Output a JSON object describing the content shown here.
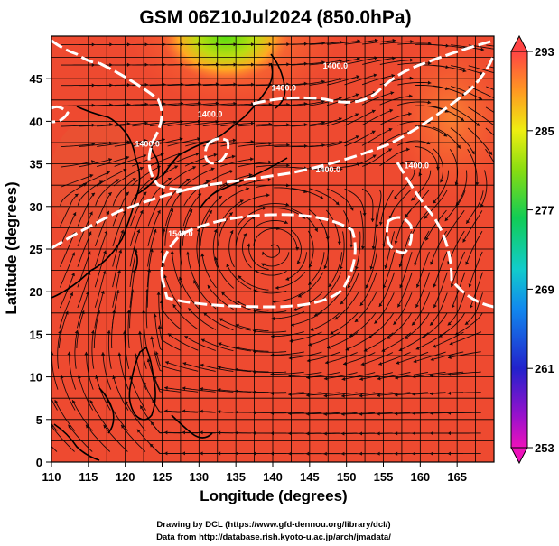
{
  "title": "GSM 06Z10Jul2024 (850.0hPa)",
  "x_axis": {
    "label": "Longitude (degrees)",
    "range": [
      110,
      170
    ],
    "ticks": [
      "110",
      "115",
      "120",
      "125",
      "130",
      "135",
      "140",
      "145",
      "150",
      "155",
      "160",
      "165"
    ]
  },
  "y_axis": {
    "label": "Latitude (degrees)",
    "range": [
      0,
      50
    ],
    "ticks": [
      "0",
      "5",
      "10",
      "15",
      "20",
      "25",
      "30",
      "35",
      "40",
      "45"
    ]
  },
  "colorbar": {
    "range": [
      253,
      293
    ],
    "ticks": [
      "253",
      "261",
      "269",
      "277",
      "285",
      "293"
    ]
  },
  "contour_labels": [
    {
      "text": "1400.0",
      "lon": 131.5,
      "lat": 40.5
    },
    {
      "text": "1400.0",
      "lon": 141.5,
      "lat": 43.6
    },
    {
      "text": "1400.0",
      "lon": 148.5,
      "lat": 46.2
    },
    {
      "text": "1400.0",
      "lon": 123.0,
      "lat": 37.0
    },
    {
      "text": "1400.0",
      "lon": 147.5,
      "lat": 34.0
    },
    {
      "text": "1540.0",
      "lon": 127.5,
      "lat": 26.5
    },
    {
      "text": "1400.0",
      "lon": 159.5,
      "lat": 34.5
    }
  ],
  "credits": {
    "line1": "Drawing by DCL (https://www.gfd-dennou.org/library/dcl/)",
    "line2": "Data from http://database.rish.kyoto-u.ac.jp/arch/jmadata/"
  },
  "colors": {
    "warm_field": "#ee4a30",
    "colorbar_top": "#ff4040",
    "colorbar_bottom": "#ee00aa"
  }
}
